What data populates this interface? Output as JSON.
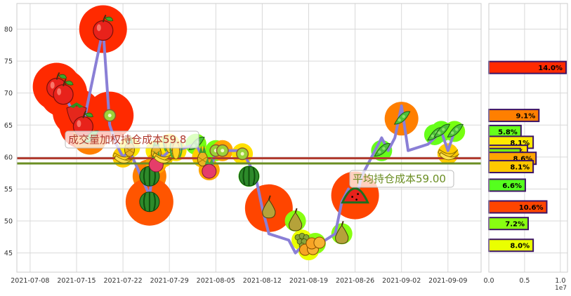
{
  "chart_data": [
    {
      "type": "line",
      "title": "",
      "xlabel": "",
      "ylabel": "",
      "ylim": [
        42,
        84
      ],
      "yticks": [
        45,
        50,
        55,
        60,
        65,
        70,
        75,
        80
      ],
      "xlim": [
        "2021-07-06",
        "2021-09-14"
      ],
      "xticks": [
        "2021-07-08",
        "2021-07-15",
        "2021-07-22",
        "2021-07-29",
        "2021-08-05",
        "2021-08-12",
        "2021-08-19",
        "2021-08-26",
        "2021-09-02",
        "2021-09-09"
      ],
      "grid": true,
      "series": [
        {
          "color": "#8a7fd6",
          "x": [
            "2021-07-12",
            "2021-07-13",
            "2021-07-14",
            "2021-07-15",
            "2021-07-16",
            "2021-07-19",
            "2021-07-20",
            "2021-07-21",
            "2021-07-22",
            "2021-07-23",
            "2021-07-26",
            "2021-07-27",
            "2021-07-28",
            "2021-07-29",
            "2021-07-30",
            "2021-08-02",
            "2021-08-03",
            "2021-08-04",
            "2021-08-05",
            "2021-08-06",
            "2021-08-09",
            "2021-08-10",
            "2021-08-11",
            "2021-08-12",
            "2021-08-13",
            "2021-08-16",
            "2021-08-17",
            "2021-08-18",
            "2021-08-19",
            "2021-08-20",
            "2021-08-23",
            "2021-08-24",
            "2021-08-25",
            "2021-08-26",
            "2021-08-27",
            "2021-08-30",
            "2021-08-31",
            "2021-09-01",
            "2021-09-02",
            "2021-09-03",
            "2021-09-06",
            "2021-09-07",
            "2021-09-08",
            "2021-09-09",
            "2021-09-10"
          ],
          "y": [
            71,
            70,
            68,
            67,
            65,
            80,
            65,
            62,
            60,
            61,
            54,
            61,
            60,
            61,
            61,
            62,
            60,
            57,
            61,
            61,
            61,
            59,
            57,
            52,
            48,
            47,
            45,
            46,
            47,
            46,
            48,
            53,
            55,
            53,
            57,
            63,
            61,
            63,
            68,
            61,
            62,
            63,
            64,
            61,
            64
          ]
        }
      ],
      "hlines": [
        {
          "value": 59.8,
          "color": "#b03a2e",
          "label": "成交量加权持仓成本59.8"
        },
        {
          "value": 59.0,
          "color": "#6b8e23",
          "label": "平均持仓成本59.00"
        }
      ]
    },
    {
      "type": "bar",
      "orientation": "horizontal",
      "xlim": [
        0,
        11000000
      ],
      "xticks": [
        0,
        5000000,
        10000000
      ],
      "xtick_labels": [
        "0.0",
        "0.5",
        "1.0"
      ],
      "x_offset_label": "1e7",
      "bars": [
        {
          "price": 74.0,
          "value": 10800000,
          "label": "14.0%",
          "color": "#ff2a00"
        },
        {
          "price": 66.5,
          "value": 7000000,
          "label": "9.1%",
          "color": "#ff7f00"
        },
        {
          "price": 64.0,
          "value": 4500000,
          "label": "5.8%",
          "color": "#66ff1a"
        },
        {
          "price": 62.3,
          "value": 6200000,
          "label": "8.1%",
          "color": "#ffea00"
        },
        {
          "price": 60.9,
          "value": 5400000,
          "label": "7.0%",
          "color": "#ffe000"
        },
        {
          "price": 60.4,
          "value": 4400000,
          "label": "5.8%",
          "color": "#77ff10"
        },
        {
          "price": 59.8,
          "value": 6600000,
          "label": "8.6%",
          "color": "#ffa500"
        },
        {
          "price": 58.5,
          "value": 6200000,
          "label": "8.1%",
          "color": "#ffc800"
        },
        {
          "price": 55.6,
          "value": 5100000,
          "label": "6.6%",
          "color": "#55ff1e"
        },
        {
          "price": 52.2,
          "value": 8100000,
          "label": "10.6%",
          "color": "#ff4500"
        },
        {
          "price": 49.6,
          "value": 5500000,
          "label": "7.2%",
          "color": "#88ff11"
        },
        {
          "price": 46.2,
          "value": 6200000,
          "label": "8.0%",
          "color": "#eaff00"
        }
      ]
    }
  ],
  "decor": {
    "fruit": [
      {
        "date": "2021-07-12",
        "price": 71.0,
        "kind": "apple",
        "color": "#ff2a00"
      },
      {
        "date": "2021-07-13",
        "price": 70.0,
        "kind": "apple",
        "color": "#ff2a00"
      },
      {
        "date": "2021-07-15",
        "price": 67.0,
        "kind": "strawberry",
        "color": "#ff2a00"
      },
      {
        "date": "2021-07-16",
        "price": 65.0,
        "kind": "apple",
        "color": "#ff2a00"
      },
      {
        "date": "2021-07-17",
        "price": 63.0,
        "kind": "peapod",
        "color": "#ff7f00"
      },
      {
        "date": "2021-07-19",
        "price": 80.0,
        "kind": "apple",
        "color": "#ff2a00"
      },
      {
        "date": "2021-07-20",
        "price": 66.5,
        "kind": "kiwi",
        "color": "#ff2a00"
      },
      {
        "date": "2021-07-22",
        "price": 60.0,
        "kind": "banana",
        "color": "#ffcc00"
      },
      {
        "date": "2021-07-23",
        "price": 61.5,
        "kind": "pineapple",
        "color": "#ffea00"
      },
      {
        "date": "2021-07-26",
        "price": 57.0,
        "kind": "watermelon",
        "color": "#ff7f00"
      },
      {
        "date": "2021-07-26",
        "price": 53.0,
        "kind": "watermelon",
        "color": "#ff5500"
      },
      {
        "date": "2021-07-27",
        "price": 61.0,
        "kind": "pineapple",
        "color": "#ffea00"
      },
      {
        "date": "2021-07-27",
        "price": 59.0,
        "kind": "radish",
        "color": "#ffa500"
      },
      {
        "date": "2021-07-28",
        "price": 60.0,
        "kind": "banana",
        "color": "#ffcc00"
      },
      {
        "date": "2021-07-29",
        "price": 62.0,
        "kind": "corn",
        "color": "#ffea00"
      },
      {
        "date": "2021-07-30",
        "price": 61.0,
        "kind": "corn",
        "color": "#ffe000"
      },
      {
        "date": "2021-08-02",
        "price": 62.0,
        "kind": "peapod",
        "color": "#77ff10"
      },
      {
        "date": "2021-08-03",
        "price": 60.0,
        "kind": "pineapple",
        "color": "#ffcc00"
      },
      {
        "date": "2021-08-04",
        "price": 58.0,
        "kind": "radish",
        "color": "#ffa500"
      },
      {
        "date": "2021-08-05",
        "price": 61.0,
        "kind": "kiwi",
        "color": "#77ff10"
      },
      {
        "date": "2021-08-06",
        "price": 61.0,
        "kind": "kiwi",
        "color": "#ffa500"
      },
      {
        "date": "2021-08-09",
        "price": 60.5,
        "kind": "kiwi",
        "color": "#ffe000"
      },
      {
        "date": "2021-08-10",
        "price": 57.0,
        "kind": "watermelon",
        "color": "#55ff1e"
      },
      {
        "date": "2021-08-13",
        "price": 52.0,
        "kind": "pear",
        "color": "#ff4500"
      },
      {
        "date": "2021-08-17",
        "price": 50.0,
        "kind": "pear",
        "color": "#88ff11"
      },
      {
        "date": "2021-08-18",
        "price": 47.0,
        "kind": "grapes",
        "color": "#eaff00"
      },
      {
        "date": "2021-08-19",
        "price": 45.5,
        "kind": "orange",
        "color": "#eaff00"
      },
      {
        "date": "2021-08-20",
        "price": 46.5,
        "kind": "orange",
        "color": "#88ff11"
      },
      {
        "date": "2021-08-24",
        "price": 48.0,
        "kind": "pear",
        "color": "#88ff11"
      },
      {
        "date": "2021-08-26",
        "price": 54.0,
        "kind": "watermelon",
        "color": "#ff4500"
      },
      {
        "date": "2021-08-30",
        "price": 61.0,
        "kind": "peapod",
        "color": "#66ff1a"
      },
      {
        "date": "2021-09-02",
        "price": 66.0,
        "kind": "peapod",
        "color": "#ff7f00"
      },
      {
        "date": "2021-09-07",
        "price": 63.5,
        "kind": "peapod",
        "color": "#66ff1a"
      },
      {
        "date": "2021-09-08",
        "price": 64.0,
        "kind": "peapod",
        "color": "#66ff1a"
      },
      {
        "date": "2021-09-09",
        "price": 60.5,
        "kind": "banana",
        "color": "#ffcc00"
      },
      {
        "date": "2021-09-10",
        "price": 64.0,
        "kind": "peapod",
        "color": "#77ff10"
      }
    ]
  }
}
